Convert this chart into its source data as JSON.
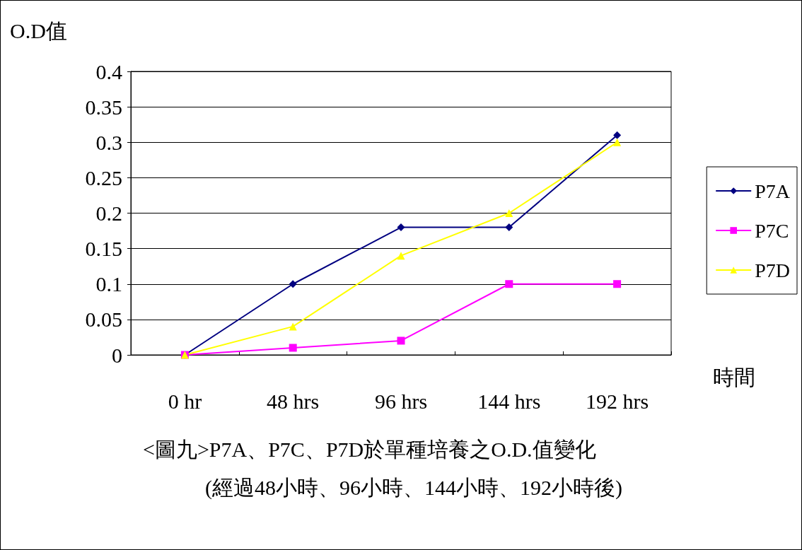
{
  "chart_data": {
    "type": "line",
    "title": "<圖九>P7A、P7C、P7D於單種培養之O.D.值變化",
    "subtitle": "(經過48小時、96小時、144小時、192小時後)",
    "xlabel": "時間",
    "ylabel": "O.D值",
    "categories": [
      "0 hr",
      "48 hrs",
      "96 hrs",
      "144 hrs",
      "192 hrs"
    ],
    "series": [
      {
        "name": "P7A",
        "color": "#000080",
        "marker": "diamond",
        "values": [
          0,
          0.1,
          0.18,
          0.18,
          0.31
        ]
      },
      {
        "name": "P7C",
        "color": "#ff00ff",
        "marker": "square",
        "values": [
          0,
          0.01,
          0.02,
          0.1,
          0.1
        ]
      },
      {
        "name": "P7D",
        "color": "#ffff00",
        "marker": "triangle",
        "values": [
          0,
          0.04,
          0.14,
          0.2,
          0.3
        ]
      }
    ],
    "ylim": [
      0,
      0.4
    ],
    "yticks": [
      0,
      0.05,
      0.1,
      0.15,
      0.2,
      0.25,
      0.3,
      0.35,
      0.4
    ],
    "grid": "y",
    "legend": "right",
    "line_style": "solid"
  }
}
